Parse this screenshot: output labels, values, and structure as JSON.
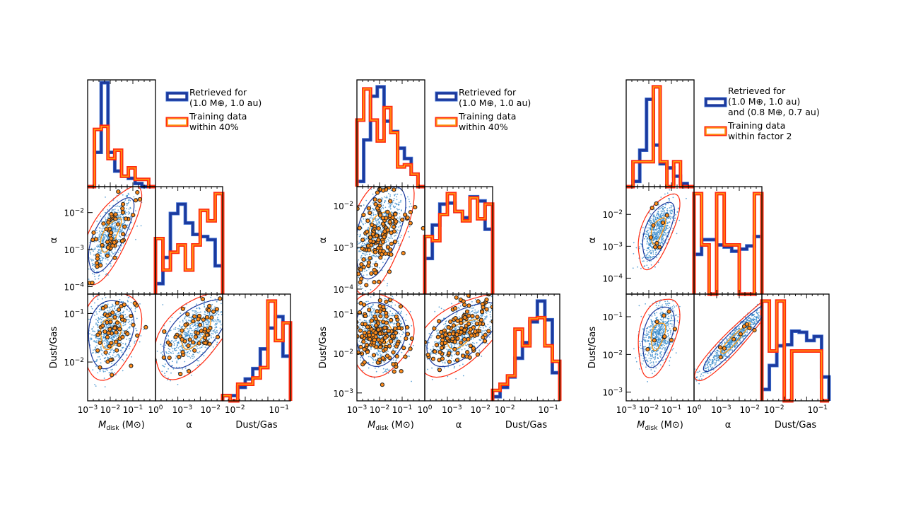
{
  "chart_data": [
    {
      "type": "corner",
      "legend": {
        "placement": "top-right",
        "retrieved_lines": [
          "Retrieved for",
          "(1.0 M⊕, 1.0 au)"
        ],
        "training_lines": [
          "Training data",
          "within 40%"
        ]
      },
      "axes": {
        "mdisk_range_log10": [
          -3,
          0
        ],
        "alpha_range_log10": [
          -4.2,
          -1.3
        ],
        "dust_range_log10": [
          -2.8,
          -0.6
        ],
        "alpha_yticks_log10": [
          -2,
          -3,
          -4
        ],
        "dust_yticks_log10": [
          -1,
          -2
        ]
      },
      "histograms": {
        "mdisk": {
          "retrieved": [
            0,
            0.33,
            1.0,
            0.33,
            0.15,
            0.1,
            0.08,
            0.03,
            0,
            0
          ],
          "training": [
            0,
            0.55,
            0.58,
            0.27,
            0.35,
            0.1,
            0.18,
            0.07,
            0.07,
            0
          ]
        },
        "alpha": {
          "retrieved": [
            0.1,
            0.35,
            0.77,
            0.86,
            0.68,
            0.57,
            0.55,
            0.52,
            0.27
          ],
          "training": [
            0.53,
            0.23,
            0.4,
            0.47,
            0.23,
            0.47,
            0.8,
            0.7,
            0.96
          ]
        },
        "dust": {
          "retrieved": [
            0.05,
            0.05,
            0.13,
            0.21,
            0.31,
            0.5,
            0.7,
            0.81,
            0.43
          ],
          "training": [
            0.05,
            0,
            0.16,
            0.16,
            0.22,
            0.32,
            0.96,
            0.58,
            0.75
          ]
        }
      },
      "clouds": {
        "mdisk_alpha": {
          "mean": [
            -2.0,
            -2.6
          ],
          "sd": [
            0.5,
            0.5
          ],
          "rho": 0.7,
          "training_points": 60
        },
        "mdisk_dust": {
          "mean": [
            -2.0,
            -1.4
          ],
          "sd": [
            0.5,
            0.35
          ],
          "rho": 0.2,
          "training_points": 60
        },
        "alpha_dust": {
          "mean": [
            -2.5,
            -1.4
          ],
          "sd": [
            0.7,
            0.35
          ],
          "rho": 0.6,
          "training_points": 60
        }
      }
    },
    {
      "type": "corner",
      "legend": {
        "placement": "top-right",
        "retrieved_lines": [
          "Retrieved for",
          "(1.0 M⊕, 1.0 au)"
        ],
        "training_lines": [
          "Training data",
          "within 40%"
        ]
      },
      "axes": {
        "mdisk_range_log10": [
          -3,
          0
        ],
        "alpha_range_log10": [
          -4.12,
          -1.54
        ],
        "dust_range_log10": [
          -3.2,
          -0.5
        ],
        "alpha_yticks_log10": [
          -2,
          -3,
          -4
        ],
        "dust_yticks_log10": [
          -1,
          -2,
          -3
        ]
      },
      "histograms": {
        "mdisk": {
          "retrieved": [
            0.05,
            0.45,
            0.87,
            0.96,
            0.63,
            0.53,
            0.37,
            0.27,
            0.12,
            0
          ],
          "training": [
            0.64,
            0.94,
            0.64,
            0.44,
            0.76,
            0.52,
            0.19,
            0.21,
            0.12,
            0
          ]
        },
        "alpha": {
          "retrieved": [
            0.34,
            0.66,
            0.86,
            0.87,
            0.79,
            0.73,
            0.93,
            0.89,
            0.62
          ],
          "training": [
            0.55,
            0.51,
            0.76,
            0.96,
            0.79,
            0.7,
            0.92,
            0.72,
            0.86
          ]
        },
        "dust": {
          "retrieved": [
            0.04,
            0.13,
            0.23,
            0.41,
            0.56,
            0.76,
            0.96,
            0.78,
            0.27
          ],
          "training": [
            0.1,
            0.16,
            0.24,
            0.69,
            0.53,
            0.79,
            0.8,
            0.53,
            0.38
          ]
        }
      },
      "clouds": {
        "mdisk_alpha": {
          "mean": [
            -2.0,
            -2.6
          ],
          "sd": [
            0.55,
            0.55
          ],
          "rho": 0.5,
          "training_points": 150
        },
        "mdisk_dust": {
          "mean": [
            -2.0,
            -1.5
          ],
          "sd": [
            0.55,
            0.4
          ],
          "rho": 0.0,
          "training_points": 150
        },
        "alpha_dust": {
          "mean": [
            -2.7,
            -1.5
          ],
          "sd": [
            0.7,
            0.4
          ],
          "rho": 0.6,
          "training_points": 150
        }
      }
    },
    {
      "type": "corner",
      "legend": {
        "placement": "top-right",
        "retrieved_lines": [
          "Retrieved for",
          "(1.0 M⊕, 1.0 au)",
          "and (0.8 M⊕, 0.7 au)"
        ],
        "training_lines": [
          "Training data",
          "within factor 2"
        ]
      },
      "axes": {
        "mdisk_range_log10": [
          -3,
          0
        ],
        "alpha_range_log10": [
          -4.5,
          -1.13
        ],
        "dust_range_log10": [
          -3.23,
          -0.4
        ],
        "alpha_yticks_log10": [
          -2,
          -3,
          -4
        ],
        "dust_yticks_log10": [
          -1,
          -2,
          -3
        ]
      },
      "histograms": {
        "mdisk": {
          "retrieved": [
            0,
            0.05,
            0.35,
            0.84,
            0.4,
            0.22,
            0.18,
            0.1,
            0.03,
            0
          ],
          "training": [
            0,
            0.24,
            0.24,
            0.24,
            0.96,
            0.24,
            0,
            0.24,
            0,
            0
          ]
        },
        "alpha": {
          "retrieved": [
            0.38,
            0.52,
            0.52,
            0.47,
            0.45,
            0.41,
            0.43,
            0.46,
            0.55
          ],
          "training": [
            0.96,
            0.47,
            0,
            0.96,
            0.47,
            0.47,
            0,
            0,
            0.96
          ]
        },
        "dust": {
          "retrieved": [
            0.11,
            0.34,
            0.53,
            0.54,
            0.67,
            0.66,
            0.58,
            0.62,
            0.23
          ],
          "training": [
            0.96,
            0.48,
            0.96,
            0,
            0.48,
            0.48,
            0.48,
            0.48,
            0
          ]
        }
      },
      "clouds": {
        "mdisk_alpha": {
          "mean": [
            -1.6,
            -2.5
          ],
          "sd": [
            0.35,
            0.45
          ],
          "rho": 0.6,
          "training_points": 9
        },
        "mdisk_dust": {
          "mean": [
            -1.6,
            -1.5
          ],
          "sd": [
            0.35,
            0.4
          ],
          "rho": 0.4,
          "training_points": 9
        },
        "alpha_dust": {
          "mean": [
            -2.5,
            -1.6
          ],
          "sd": [
            0.8,
            0.45
          ],
          "rho": 0.95,
          "training_points": 9
        }
      }
    }
  ],
  "labels": {
    "mdisk_main": "M",
    "mdisk_sub": "disk",
    "mdisk_unit": " (M⊙)",
    "alpha": "α",
    "dust": "Dust/Gas",
    "mdisk_xticks": [
      "-3",
      "-2",
      "-1",
      "0"
    ],
    "alpha_xticks": [
      "-3",
      "-2"
    ],
    "dust_xticks": [
      "-2",
      "-1"
    ]
  },
  "colors": {
    "retrieved": "#1c3a9e",
    "training_outer": "#ff2a10",
    "training_inner": "#ff9a10",
    "samples": "#2f86c8",
    "training_points": "#ff8c1a"
  }
}
